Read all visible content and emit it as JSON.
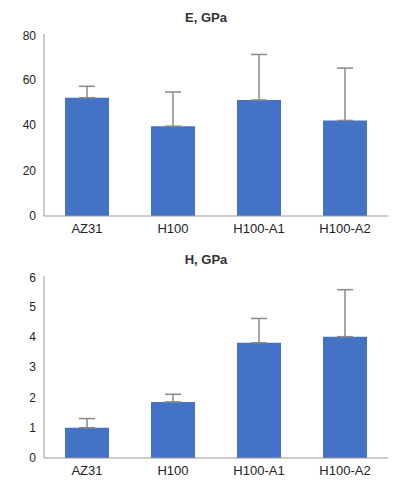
{
  "chart_data": [
    {
      "type": "bar",
      "title": "E, GPa",
      "categories": [
        "AZ31",
        "H100",
        "H100-A1",
        "H100-A2"
      ],
      "values": [
        52,
        39.5,
        51,
        42
      ],
      "errors": [
        5,
        15,
        20,
        23
      ],
      "color": "#4472c4",
      "ylim": [
        0,
        80
      ],
      "yticks": [
        0,
        20,
        40,
        60,
        80
      ]
    },
    {
      "type": "bar",
      "title": "H, GPa",
      "categories": [
        "AZ31",
        "H100",
        "H100-A1",
        "H100-A2"
      ],
      "values": [
        1.0,
        1.85,
        3.8,
        4.0
      ],
      "errors": [
        0.3,
        0.25,
        0.8,
        1.55
      ],
      "color": "#4472c4",
      "ylim": [
        0,
        6
      ],
      "yticks": [
        0,
        1,
        2,
        3,
        4,
        5,
        6
      ]
    }
  ]
}
